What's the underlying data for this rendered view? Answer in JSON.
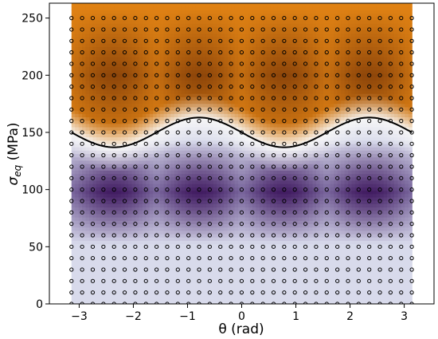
{
  "chart_data": {
    "type": "heatmap",
    "title": "",
    "xlabel": "θ (rad)",
    "ylabel_symbol": "σ",
    "ylabel_subscript": "eq",
    "ylabel_unit": " (MPa)",
    "xlim": [
      -3.55,
      3.55
    ],
    "ylim": [
      0,
      263
    ],
    "x_ticks": [
      -3,
      -2,
      -1,
      0,
      1,
      2,
      3
    ],
    "x_tick_labels": [
      "−3",
      "−2",
      "−1",
      "0",
      "1",
      "2",
      "3"
    ],
    "y_ticks": [
      0,
      50,
      100,
      150,
      200,
      250
    ],
    "y_tick_labels": [
      "0",
      "50",
      "100",
      "150",
      "200",
      "250"
    ],
    "grid": false,
    "field_extent": {
      "x": [
        -3.1416,
        3.1416
      ],
      "y": [
        0,
        263
      ]
    },
    "sample_points": {
      "x_start": -3.1416,
      "x_step": 0.1963,
      "x_count": 33,
      "y_start": 0,
      "y_step": 10,
      "y_count": 26
    },
    "boundary_curve": {
      "description_shown": "solid black curve",
      "mean": 150,
      "amplitude": 13,
      "phase_shift": 0.785,
      "frequency": 2
    },
    "colors": {
      "above_boundary": "#e08214",
      "above_dark": "#7f3b08",
      "below_boundary": "#8073ac",
      "below_dark": "#2d004b",
      "near_boundary": "#f7f7f7",
      "points": "#000000",
      "curve": "#000000"
    }
  }
}
